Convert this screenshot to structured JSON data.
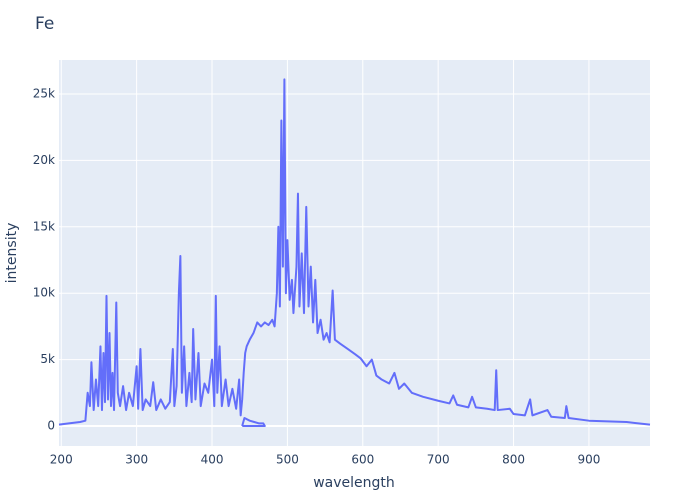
{
  "chart_data": {
    "type": "line",
    "title": "Fe",
    "x_label": "wavelength",
    "y_label": "intensity",
    "color": "#636efa",
    "grid": true,
    "xlim": [
      197,
      981
    ],
    "ylim": [
      -1506,
      27560
    ],
    "xticks": [
      200,
      300,
      400,
      500,
      600,
      700,
      800,
      900
    ],
    "yticks": [
      0,
      {
        "value": 5000,
        "label": "5k"
      },
      {
        "value": 10000,
        "label": "10k"
      },
      {
        "value": 15000,
        "label": "15k"
      },
      {
        "value": 20000,
        "label": "20k"
      },
      {
        "value": 25000,
        "label": "25k"
      }
    ],
    "x": [
      197,
      210,
      225,
      232,
      235,
      238,
      240,
      243,
      246,
      249,
      252,
      254,
      256,
      258,
      260,
      262,
      264,
      266,
      268,
      270,
      273,
      275,
      278,
      282,
      286,
      290,
      295,
      300,
      302,
      305,
      308,
      312,
      318,
      322,
      326,
      332,
      338,
      344,
      348,
      350,
      353,
      356,
      358,
      360,
      363,
      366,
      370,
      373,
      375,
      378,
      382,
      385,
      390,
      395,
      400,
      403,
      405,
      407,
      410,
      413,
      418,
      422,
      427,
      432,
      436,
      438,
      440,
      442,
      444,
      446,
      450,
      455,
      460,
      465,
      470,
      475,
      480,
      483,
      486,
      488,
      490,
      492,
      494,
      496,
      498,
      500,
      503,
      506,
      508,
      512,
      514,
      516,
      519,
      522,
      525,
      528,
      531,
      534,
      537,
      540,
      544,
      548,
      552,
      556,
      560,
      563,
      570,
      580,
      590,
      597,
      605,
      612,
      618,
      625,
      635,
      642,
      648,
      655,
      665,
      680,
      700,
      715,
      720,
      725,
      740,
      745,
      750,
      765,
      775,
      777,
      779,
      795,
      800,
      815,
      822,
      825,
      845,
      850,
      868,
      870,
      873,
      900,
      950,
      981,
      470,
      440,
      443,
      450,
      456,
      462,
      468,
      470,
      440
    ],
    "values": [
      100,
      200,
      300,
      400,
      2500,
      1500,
      4800,
      1200,
      3500,
      1500,
      6000,
      1200,
      5500,
      1800,
      9800,
      2000,
      7000,
      1500,
      4000,
      1200,
      9300,
      2500,
      1500,
      3000,
      1200,
      2500,
      1500,
      4500,
      1300,
      5800,
      1200,
      2000,
      1500,
      3300,
      1200,
      2000,
      1300,
      1800,
      5800,
      1500,
      3000,
      10000,
      12800,
      2500,
      6000,
      1500,
      4000,
      1800,
      7300,
      2000,
      5500,
      1500,
      3200,
      2500,
      5000,
      1500,
      9800,
      2500,
      6000,
      1500,
      3500,
      1500,
      2800,
      1300,
      3500,
      800,
      2000,
      4000,
      5500,
      6000,
      6500,
      7000,
      7800,
      7500,
      7800,
      7600,
      8000,
      7500,
      10000,
      15000,
      9000,
      23000,
      12000,
      26100,
      10000,
      14000,
      9500,
      11000,
      8500,
      12000,
      17500,
      9000,
      13000,
      8500,
      16500,
      9000,
      12000,
      7800,
      11000,
      7000,
      8000,
      6500,
      7000,
      6300,
      10200,
      6500,
      6200,
      5800,
      5400,
      5100,
      4500,
      5000,
      3800,
      3500,
      3200,
      4000,
      2800,
      3200,
      2500,
      2200,
      1900,
      1700,
      2300,
      1600,
      1400,
      2200,
      1400,
      1300,
      1200,
      4200,
      1200,
      1300,
      900,
      800,
      2000,
      800,
      1200,
      700,
      600,
      1500,
      600,
      400,
      300,
      100,
      null,
      0,
      600,
      400,
      300,
      200,
      200,
      0,
      0
    ]
  }
}
